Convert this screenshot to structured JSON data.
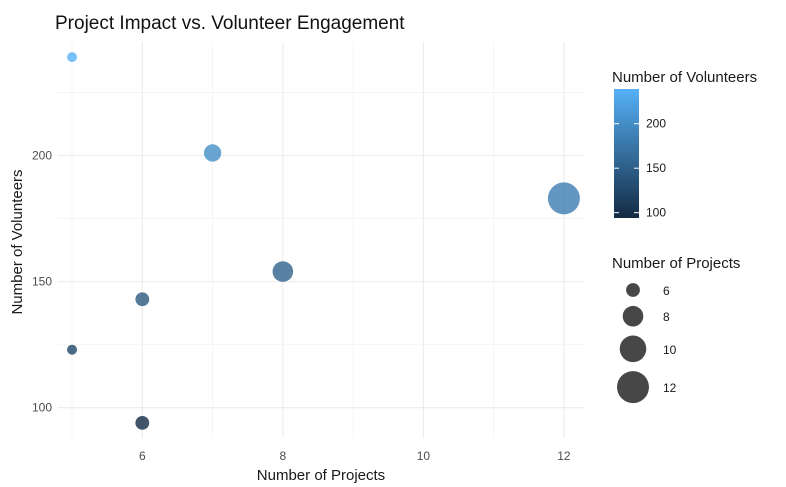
{
  "chart_data": {
    "type": "scatter",
    "title": "Project Impact vs. Volunteer Engagement",
    "xlabel": "Number of Projects",
    "ylabel": "Number of Volunteers",
    "xlim": [
      4.8,
      12.3
    ],
    "ylim": [
      88,
      245
    ],
    "x_ticks": [
      6,
      8,
      10,
      12
    ],
    "y_ticks": [
      100,
      150,
      200
    ],
    "grid": true,
    "points": [
      {
        "x": 5,
        "y": 239
      },
      {
        "x": 7,
        "y": 201
      },
      {
        "x": 12,
        "y": 183
      },
      {
        "x": 8,
        "y": 154
      },
      {
        "x": 6,
        "y": 143
      },
      {
        "x": 5,
        "y": 123
      },
      {
        "x": 6,
        "y": 94
      }
    ],
    "color_scale": {
      "variable": "Number of Volunteers",
      "low_color": "#132B43",
      "high_color": "#56B1F7",
      "domain": [
        94,
        239
      ],
      "breaks": [
        100,
        150,
        200
      ],
      "alpha": 0.8
    },
    "size_scale": {
      "variable": "Number of Projects",
      "domain": [
        5,
        12
      ],
      "breaks": [
        6,
        8,
        10,
        12
      ],
      "legend_color": "#474747"
    },
    "legend": [
      {
        "title": "Number of Volunteers",
        "placement": "right"
      },
      {
        "title": "Number of Projects",
        "placement": "right"
      }
    ]
  }
}
